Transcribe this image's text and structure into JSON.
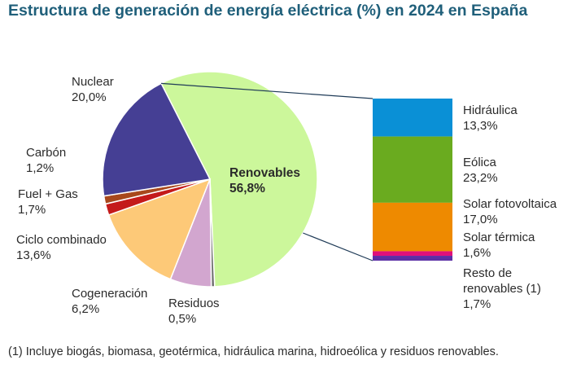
{
  "chart_data": {
    "type": "pie",
    "title": "Estructura de generación de energía eléctrica (%) en 2024 en España",
    "pie": {
      "slices": [
        {
          "label": "Renovables",
          "value": 56.8,
          "display": "56,8%",
          "color": "#ccf79b"
        },
        {
          "label": "Residuos",
          "value": 0.5,
          "display": "0,5%",
          "color": "#6f6f6f"
        },
        {
          "label": "Cogeneración",
          "value": 6.2,
          "display": "6,2%",
          "color": "#d2a6cf"
        },
        {
          "label": "Ciclo combinado",
          "value": 13.6,
          "display": "13,6%",
          "color": "#fdc978"
        },
        {
          "label": "Fuel + Gas",
          "value": 1.7,
          "display": "1,7%",
          "color": "#c41a1a"
        },
        {
          "label": "Carbón",
          "value": 1.2,
          "display": "1,2%",
          "color": "#a8481c"
        },
        {
          "label": "Nuclear",
          "value": 20.0,
          "display": "20,0%",
          "color": "#453f94"
        }
      ]
    },
    "breakdown": {
      "of": "Renovables",
      "segments": [
        {
          "label": "Hidráulica",
          "value": 13.3,
          "display": "13,3%",
          "color": "#0a90d6"
        },
        {
          "label": "Eólica",
          "value": 23.2,
          "display": "23,2%",
          "color": "#6aab1f"
        },
        {
          "label": "Solar fotovoltaica",
          "value": 17.0,
          "display": "17,0%",
          "color": "#ee8a00"
        },
        {
          "label": "Solar térmica",
          "value": 1.6,
          "display": "1,6%",
          "color": "#e0107a"
        },
        {
          "label": "Resto de renovables (1)",
          "label_line1": "Resto de",
          "label_line2": "renovables (1)",
          "value": 1.7,
          "display": "1,7%",
          "color": "#5b2ea6"
        }
      ]
    },
    "footnote": "(1) Incluye biogás, biomasa, geotérmica, hidráulica marina, hidroeólica y residuos renovables."
  }
}
